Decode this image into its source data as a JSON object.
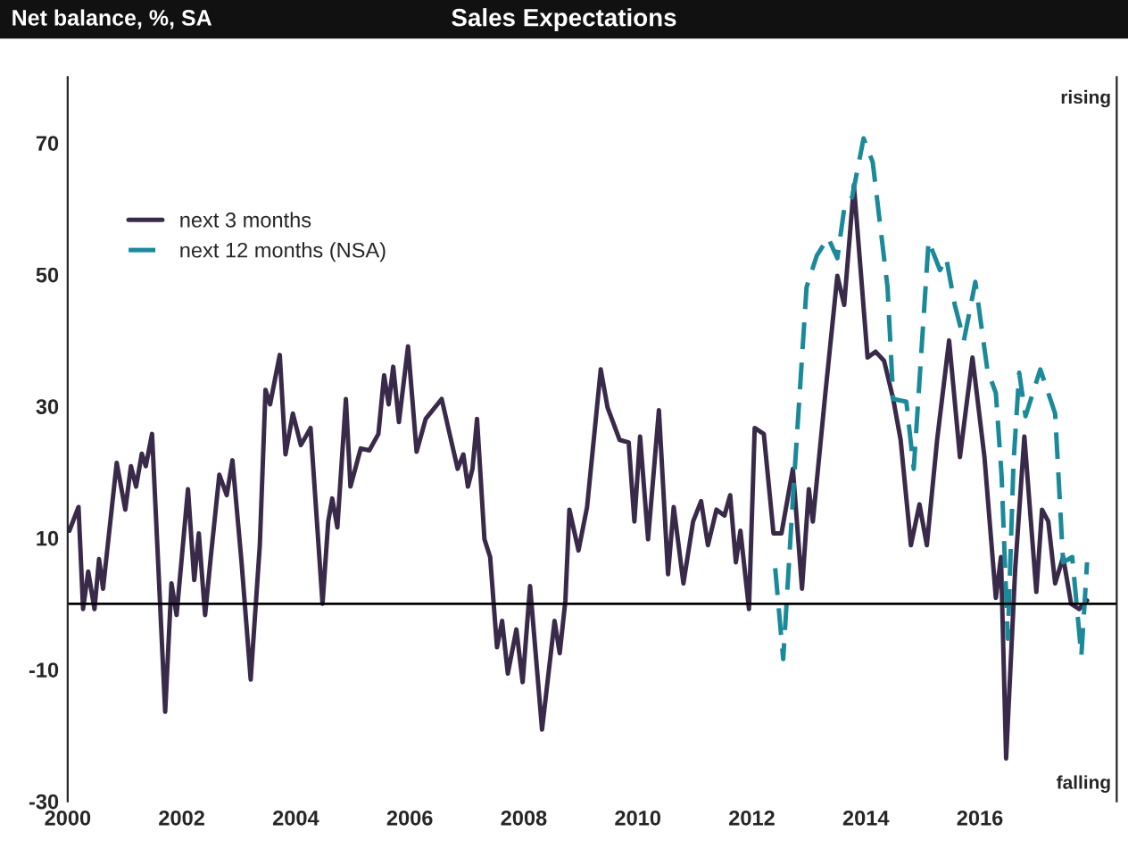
{
  "chart_data": {
    "type": "line",
    "title": "Sales Expectations",
    "ylabel": "Net balance, %, SA",
    "annotations": [
      "rising",
      "falling"
    ],
    "xlim": [
      2000,
      2018.4
    ],
    "xticks": [
      2000,
      2002,
      2004,
      2006,
      2008,
      2010,
      2012,
      2014,
      2016
    ],
    "ylim": [
      -30,
      80
    ],
    "yticks": [
      -30,
      -10,
      10,
      30,
      50,
      70
    ],
    "ref_lines": [
      {
        "axis": "y",
        "value": 0,
        "color": "#000000"
      }
    ],
    "grid": false,
    "legend": "top left",
    "marker": "none",
    "series": [
      {
        "name": "next 3 months",
        "color": "#3a2a4a",
        "line_style": "solid",
        "x": [
          2000.03,
          2000.19,
          2000.27,
          2000.36,
          2000.47,
          2000.55,
          2000.62,
          2000.86,
          2001.01,
          2001.11,
          2001.2,
          2001.3,
          2001.37,
          2001.48,
          2001.71,
          2001.82,
          2001.91,
          2002.11,
          2002.22,
          2002.3,
          2002.41,
          2002.51,
          2002.66,
          2002.79,
          2002.89,
          2003.05,
          2003.21,
          2003.37,
          2003.47,
          2003.55,
          2003.72,
          2003.82,
          2003.95,
          2004.09,
          2004.26,
          2004.47,
          2004.57,
          2004.64,
          2004.73,
          2004.88,
          2004.96,
          2005.14,
          2005.29,
          2005.45,
          2005.55,
          2005.63,
          2005.71,
          2005.81,
          2005.97,
          2006.12,
          2006.28,
          2006.56,
          2006.84,
          2006.94,
          2007.02,
          2007.1,
          2007.18,
          2007.31,
          2007.41,
          2007.53,
          2007.62,
          2007.72,
          2007.87,
          2007.98,
          2008.11,
          2008.32,
          2008.54,
          2008.63,
          2008.73,
          2008.8,
          2008.96,
          2009.11,
          2009.35,
          2009.47,
          2009.68,
          2009.84,
          2009.94,
          2010.04,
          2010.18,
          2010.37,
          2010.53,
          2010.63,
          2010.8,
          2010.97,
          2011.11,
          2011.23,
          2011.38,
          2011.52,
          2011.62,
          2011.72,
          2011.8,
          2011.95,
          2012.05,
          2012.21,
          2012.38,
          2012.52,
          2012.72,
          2012.88,
          2013.0,
          2013.07,
          2013.29,
          2013.5,
          2013.62,
          2013.79,
          2014.03,
          2014.17,
          2014.32,
          2014.48,
          2014.61,
          2014.79,
          2014.94,
          2015.07,
          2015.25,
          2015.46,
          2015.65,
          2015.87,
          2016.08,
          2016.28,
          2016.37,
          2016.46,
          2016.62,
          2016.78,
          2016.99,
          2017.09,
          2017.2,
          2017.32,
          2017.46,
          2017.6,
          2017.74,
          2017.88
        ],
        "values": [
          11.1,
          14.7,
          -0.8,
          4.9,
          -0.8,
          6.8,
          2.3,
          21.4,
          14.3,
          20.9,
          17.8,
          22.8,
          20.9,
          25.8,
          -16.4,
          3.1,
          -1.7,
          17.4,
          3.6,
          10.7,
          -1.7,
          7.1,
          19.6,
          16.5,
          21.8,
          6.3,
          -11.5,
          8.9,
          32.5,
          30.3,
          37.8,
          22.7,
          28.9,
          24.1,
          26.7,
          0,
          12.5,
          16,
          11.6,
          31.1,
          17.8,
          23.6,
          23.3,
          25.8,
          34.7,
          30.3,
          36,
          27.6,
          39.1,
          23.1,
          28.1,
          31.1,
          20.5,
          22.7,
          17.8,
          20.5,
          28.1,
          9.8,
          7.1,
          -6.6,
          -2.6,
          -10.6,
          -3.9,
          -11.9,
          2.7,
          -19.1,
          -2.6,
          -7.5,
          0.5,
          14.3,
          8.1,
          14.7,
          35.6,
          29.8,
          24.9,
          24.5,
          12.5,
          25.4,
          9.8,
          29.4,
          4.5,
          14.7,
          3.1,
          12.5,
          15.6,
          8.9,
          14.3,
          13.4,
          16.5,
          6.3,
          11.1,
          -0.8,
          26.7,
          25.8,
          10.7,
          10.7,
          20.5,
          2.3,
          17.4,
          12.5,
          32,
          49.8,
          45.4,
          63.6,
          37.4,
          38.3,
          36.9,
          31.1,
          24.9,
          8.9,
          15.1,
          8.9,
          24.9,
          40,
          22.3,
          37.4,
          22.3,
          0.9,
          7.1,
          -23.5,
          5.4,
          25.4,
          1.8,
          14.3,
          12.5,
          3.1,
          7.1,
          0,
          -0.8,
          0.5
        ]
      },
      {
        "name": "next 12 months (NSA)",
        "color": "#1a8a9a",
        "line_style": "dashed",
        "x": [
          2012.41,
          2012.55,
          2012.72,
          2012.96,
          2013.14,
          2013.34,
          2013.5,
          2013.62,
          2013.76,
          2013.96,
          2014.12,
          2014.38,
          2014.48,
          2014.71,
          2014.84,
          2015.1,
          2015.3,
          2015.41,
          2015.56,
          2015.72,
          2015.92,
          2016.13,
          2016.28,
          2016.38,
          2016.49,
          2016.59,
          2016.69,
          2016.8,
          2017.06,
          2017.32,
          2017.46,
          2017.62,
          2017.78,
          2017.88
        ],
        "values": [
          5.4,
          -8.4,
          16,
          48.1,
          52.9,
          55.6,
          52.5,
          60,
          61.8,
          70.7,
          67.1,
          48.1,
          31.1,
          30.7,
          20.5,
          55.1,
          50.7,
          52.5,
          45.4,
          40,
          48.9,
          35.6,
          32,
          19.6,
          -5.3,
          21.4,
          35.1,
          28.5,
          35.6,
          28.9,
          6.3,
          7.1,
          -7.9,
          6.3
        ]
      }
    ]
  }
}
